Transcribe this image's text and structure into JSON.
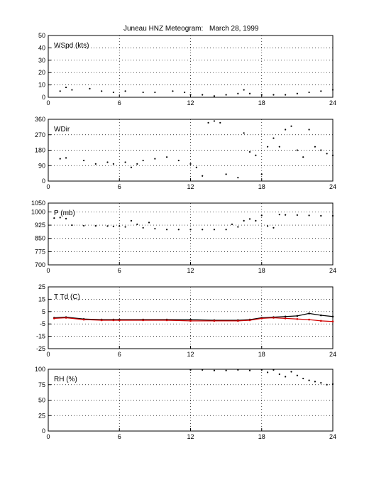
{
  "header": {
    "title": "Juneau HNZ Meteogram:",
    "date": "March 28, 1999"
  },
  "colors": {
    "primary": "#000000",
    "secondary": "#d00000"
  },
  "chart_data": [
    {
      "type": "scatter",
      "label": "WSpd (kts)",
      "xlim": [
        0,
        24
      ],
      "ylim": [
        0,
        50
      ],
      "x_ticks": [
        0,
        6,
        12,
        18,
        24
      ],
      "y_ticks": [
        0,
        10,
        20,
        30,
        40,
        50
      ],
      "grid": true,
      "series": [
        {
          "color": "#000000",
          "x": [
            1,
            1.5,
            2,
            3.5,
            4.5,
            5.5,
            6.5,
            8,
            9,
            10.5,
            11.5,
            12,
            13,
            14,
            15,
            16,
            16.5,
            17,
            18,
            19,
            20,
            21,
            22,
            23,
            24
          ],
          "y": [
            5,
            8,
            6,
            7,
            5,
            4,
            5,
            4,
            4,
            5,
            4,
            2,
            2,
            1,
            2,
            3,
            6,
            3,
            2,
            2,
            2,
            3,
            4,
            5,
            6
          ]
        }
      ]
    },
    {
      "type": "scatter",
      "label": "WDir",
      "xlim": [
        0,
        24
      ],
      "ylim": [
        0,
        360
      ],
      "x_ticks": [
        0,
        6,
        12,
        18,
        24
      ],
      "y_ticks": [
        0,
        90,
        180,
        270,
        360
      ],
      "grid": true,
      "series": [
        {
          "color": "#000000",
          "x": [
            1,
            1.5,
            3,
            4,
            5,
            5.5,
            6.5,
            7,
            7.5,
            8,
            9,
            10,
            11,
            12,
            12.5,
            13,
            13.5,
            14,
            14.5,
            15,
            16,
            16.5,
            17,
            17.5,
            18,
            18.5,
            19,
            19.5,
            20,
            20.5,
            21,
            21.5,
            22,
            22.5,
            23,
            23.5,
            24
          ],
          "y": [
            130,
            135,
            120,
            100,
            110,
            100,
            110,
            80,
            100,
            120,
            130,
            140,
            120,
            100,
            80,
            30,
            340,
            350,
            340,
            40,
            20,
            280,
            170,
            150,
            40,
            200,
            250,
            200,
            300,
            320,
            180,
            140,
            300,
            200,
            180,
            160,
            150
          ]
        }
      ]
    },
    {
      "type": "scatter",
      "label": "P (mb)",
      "xlim": [
        0,
        24
      ],
      "ylim": [
        700,
        1050
      ],
      "x_ticks": [
        0,
        6,
        12,
        18,
        24
      ],
      "y_ticks": [
        700,
        775,
        850,
        925,
        1000,
        1050
      ],
      "grid": true,
      "series": [
        {
          "color": "#000000",
          "x": [
            0.5,
            1,
            1.5,
            2,
            3,
            4,
            5,
            5.5,
            6,
            6.5,
            7,
            7.5,
            8,
            8.5,
            9,
            10,
            11,
            12,
            13,
            14,
            15,
            15.5,
            16,
            16.5,
            17,
            17.5,
            18,
            18.5,
            19,
            19.5,
            20,
            21,
            22,
            23,
            24
          ],
          "y": [
            965,
            968,
            962,
            925,
            922,
            921,
            920,
            918,
            920,
            915,
            950,
            930,
            910,
            940,
            905,
            900,
            900,
            900,
            900,
            900,
            900,
            930,
            915,
            950,
            960,
            950,
            980,
            920,
            910,
            985,
            983,
            982,
            980,
            978,
            978
          ]
        }
      ]
    },
    {
      "type": "line",
      "label": "T Td (C)",
      "xlim": [
        0,
        24
      ],
      "ylim": [
        -25,
        25
      ],
      "x_ticks": [
        0,
        6,
        12,
        18,
        24
      ],
      "y_ticks": [
        -25,
        -15,
        -5,
        5,
        15,
        25
      ],
      "grid": true,
      "series": [
        {
          "color": "#000000",
          "x": [
            0.5,
            1.5,
            3,
            4.5,
            5.5,
            6,
            8,
            10,
            12,
            14,
            16,
            17,
            18,
            19,
            20,
            21,
            22,
            23,
            24
          ],
          "y": [
            0,
            0.5,
            -1,
            -1.5,
            -1.5,
            -1.5,
            -1.5,
            -1.5,
            -1.5,
            -2,
            -2,
            -1.5,
            0,
            0.5,
            1,
            1.5,
            3.5,
            2,
            1
          ]
        },
        {
          "color": "#d00000",
          "x": [
            0.5,
            1.5,
            3,
            4.5,
            5.5,
            6,
            8,
            10,
            12,
            14,
            16,
            17,
            18,
            19,
            20,
            21,
            22,
            23,
            24
          ],
          "y": [
            -0.5,
            0,
            -1.5,
            -2,
            -2,
            -2,
            -2,
            -2,
            -2.5,
            -2.5,
            -2.5,
            -2,
            -0.5,
            0,
            -0.5,
            -1,
            -1.5,
            -2.5,
            -3
          ]
        }
      ]
    },
    {
      "type": "scatter",
      "label": "RH (%)",
      "xlim": [
        0,
        24
      ],
      "ylim": [
        0,
        100
      ],
      "x_ticks": [
        0,
        6,
        12,
        18,
        24
      ],
      "y_ticks": [
        0,
        25,
        50,
        75,
        100
      ],
      "grid": true,
      "series": [
        {
          "color": "#000000",
          "x": [
            12,
            13,
            14,
            15,
            16,
            17,
            18,
            18.5,
            19,
            19.5,
            20,
            20.5,
            21,
            21.5,
            22,
            22.5,
            23,
            23.5,
            24
          ],
          "y": [
            99,
            99,
            98,
            98,
            99,
            98,
            99,
            95,
            99,
            92,
            88,
            96,
            90,
            85,
            82,
            80,
            78,
            75,
            76
          ]
        }
      ]
    }
  ]
}
